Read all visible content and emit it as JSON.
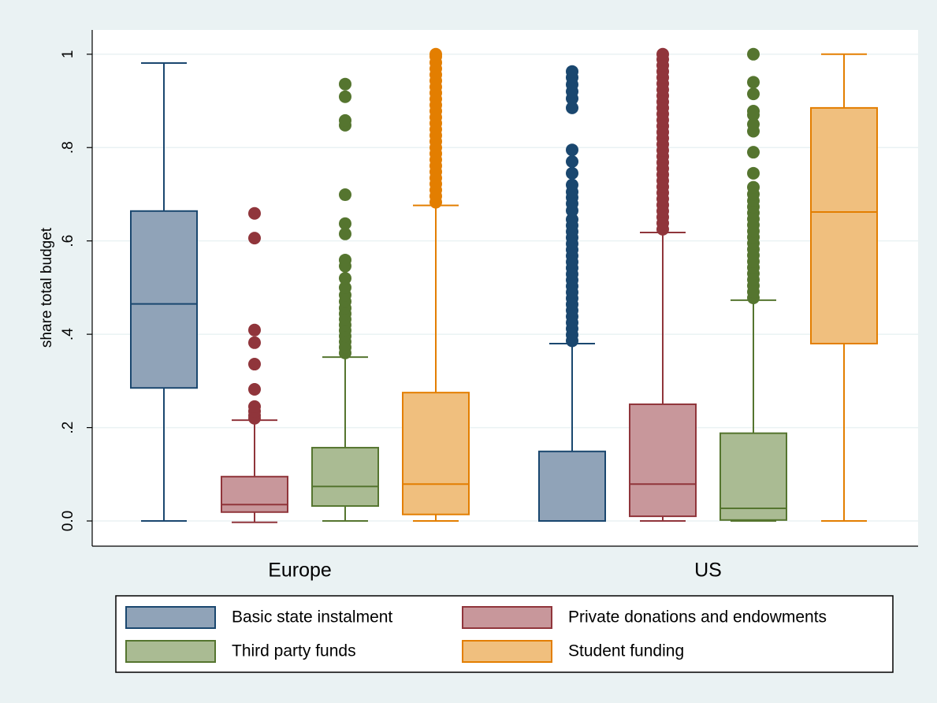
{
  "chart_data": {
    "type": "box",
    "ylabel": "share total budget",
    "groups": [
      "Europe",
      "US"
    ],
    "ylim": [
      -0.054,
      1.052
    ],
    "yticks": [
      {
        "value": 0,
        "label": "0.0"
      },
      {
        "value": 0.2,
        "label": ".2"
      },
      {
        "value": 0.4,
        "label": ".4"
      },
      {
        "value": 0.6,
        "label": ".6"
      },
      {
        "value": 0.8,
        "label": ".8"
      },
      1
    ],
    "grid": true,
    "legend": "bottom",
    "series": [
      {
        "name": "Basic state instalment",
        "color": "#1a476f",
        "fill": "#90a3b8",
        "boxes": [
          {
            "low": 0,
            "q1": 0.285,
            "median": 0.465,
            "q3": 0.664,
            "high": 0.981,
            "outliers": []
          },
          {
            "low": 0,
            "q1": 0,
            "median": 0,
            "q3": 0.149,
            "high": 0.38,
            "outliers": [
              0.386,
              0.399,
              0.412,
              0.425,
              0.438,
              0.451,
              0.464,
              0.477,
              0.49,
              0.503,
              0.516,
              0.529,
              0.542,
              0.555,
              0.568,
              0.581,
              0.594,
              0.607,
              0.62,
              0.633,
              0.646,
              0.665,
              0.68,
              0.693,
              0.705,
              0.72,
              0.745,
              0.77,
              0.795,
              0.885,
              0.905,
              0.92,
              0.935,
              0.95,
              0.963
            ]
          }
        ]
      },
      {
        "name": "Private donations and endowments",
        "color": "#90353b",
        "fill": "#c8979b",
        "boxes": [
          {
            "low": -0.003,
            "q1": 0.019,
            "median": 0.035,
            "q3": 0.095,
            "high": 0.216,
            "outliers": [
              0.22,
              0.226,
              0.235,
              0.245,
              0.282,
              0.336,
              0.382,
              0.409,
              0.606,
              0.659
            ]
          },
          {
            "low": 0,
            "q1": 0.01,
            "median": 0.079,
            "q3": 0.25,
            "high": 0.618,
            "outliers": [
              0.625,
              0.638,
              0.651,
              0.664,
              0.677,
              0.69,
              0.703,
              0.716,
              0.729,
              0.742,
              0.755,
              0.768,
              0.781,
              0.794,
              0.807,
              0.82,
              0.833,
              0.846,
              0.859,
              0.872,
              0.885,
              0.898,
              0.911,
              0.924,
              0.937,
              0.95,
              0.963,
              0.976,
              0.989,
              1.0
            ]
          }
        ]
      },
      {
        "name": "Third party funds",
        "color": "#55752f",
        "fill": "#aabb93",
        "boxes": [
          {
            "low": 0,
            "q1": 0.032,
            "median": 0.074,
            "q3": 0.157,
            "high": 0.351,
            "outliers": [
              0.36,
              0.372,
              0.384,
              0.396,
              0.408,
              0.42,
              0.432,
              0.444,
              0.456,
              0.47,
              0.484,
              0.5,
              0.52,
              0.546,
              0.559,
              0.615,
              0.637,
              0.699,
              0.848,
              0.858,
              0.909,
              0.936
            ]
          },
          {
            "low": 0,
            "q1": 0.002,
            "median": 0.027,
            "q3": 0.188,
            "high": 0.473,
            "outliers": [
              0.478,
              0.491,
              0.504,
              0.517,
              0.53,
              0.543,
              0.556,
              0.569,
              0.582,
              0.595,
              0.608,
              0.621,
              0.634,
              0.647,
              0.66,
              0.673,
              0.686,
              0.7,
              0.715,
              0.745,
              0.79,
              0.835,
              0.85,
              0.87,
              0.878,
              0.915,
              0.94,
              1.0
            ]
          }
        ]
      },
      {
        "name": "Student funding",
        "color": "#e37e00",
        "fill": "#f0bf7e",
        "boxes": [
          {
            "low": 0,
            "q1": 0.014,
            "median": 0.079,
            "q3": 0.275,
            "high": 0.676,
            "outliers": [
              0.683,
              0.696,
              0.709,
              0.722,
              0.735,
              0.748,
              0.761,
              0.774,
              0.787,
              0.8,
              0.813,
              0.826,
              0.839,
              0.852,
              0.865,
              0.878,
              0.891,
              0.904,
              0.917,
              0.93,
              0.943,
              0.956,
              0.969,
              0.982,
              0.995,
              1.0
            ]
          },
          {
            "low": 0,
            "q1": 0.38,
            "median": 0.662,
            "q3": 0.885,
            "high": 1.0,
            "outliers": []
          }
        ]
      }
    ]
  }
}
